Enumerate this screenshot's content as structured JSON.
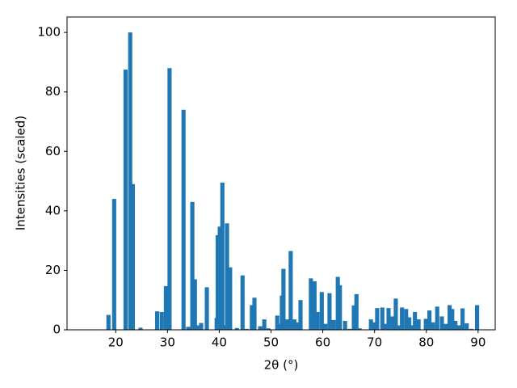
{
  "chart_data": {
    "type": "bar",
    "x_label": "2θ (°)",
    "y_label": "Intensities (scaled)",
    "x": [
      18.6,
      19.7,
      21.9,
      22.8,
      23.3,
      24.8,
      28.0,
      28.9,
      29.7,
      30.4,
      33.1,
      34.0,
      34.8,
      35.3,
      35.7,
      36.5,
      37.6,
      39.5,
      39.7,
      40.1,
      40.6,
      41.0,
      41.5,
      42.1,
      43.4,
      44.5,
      45.3,
      46.3,
      46.8,
      47.9,
      48.7,
      49.5,
      51.2,
      51.8,
      52.1,
      52.4,
      53.1,
      53.8,
      54.5,
      55.1,
      55.7,
      57.7,
      58.4,
      59.0,
      59.8,
      60.5,
      61.3,
      62.1,
      62.9,
      63.3,
      64.3,
      65.2,
      66.0,
      66.5,
      67.1,
      69.3,
      69.9,
      70.5,
      71.5,
      72.2,
      72.7,
      73.5,
      74.1,
      74.7,
      75.3,
      76.1,
      76.7,
      77.2,
      77.8,
      78.5,
      79.9,
      80.6,
      81.3,
      82.1,
      83.0,
      83.8,
      84.5,
      85.0,
      85.6,
      86.3,
      87.0,
      87.8,
      88.7,
      89.8
    ],
    "values": [
      5,
      44,
      87.5,
      100,
      49,
      0.7,
      6.2,
      6,
      14.7,
      88,
      74,
      1,
      43,
      17,
      1.5,
      2.3,
      14.3,
      4,
      31.8,
      34.7,
      49.5,
      1.5,
      35.8,
      21,
      0.6,
      18.3,
      0.3,
      8.3,
      10.8,
      1.2,
      3.5,
      0.5,
      4.8,
      2,
      11.5,
      20.5,
      3.5,
      26.5,
      3.5,
      2.5,
      10,
      17.3,
      16.3,
      6,
      12.7,
      2,
      12.3,
      3.3,
      17.8,
      15,
      3,
      0.3,
      8.2,
      12,
      0.5,
      3.5,
      2.5,
      7.3,
      7.5,
      2,
      7.3,
      4.5,
      10.5,
      1.5,
      7.5,
      7,
      4.2,
      1.5,
      6,
      3.5,
      3.7,
      6.5,
      2.5,
      7.8,
      4.5,
      2,
      8.3,
      7,
      3,
      1.5,
      7.2,
      2.2,
      0.3,
      8.3
    ],
    "color": "#1f77b4",
    "xlim": [
      10.6,
      93.3
    ],
    "xticks": [
      20,
      30,
      40,
      50,
      60,
      70,
      80,
      90
    ],
    "ylim": [
      0,
      105.2
    ],
    "yticks": [
      0,
      20,
      40,
      60,
      80,
      100
    ]
  }
}
